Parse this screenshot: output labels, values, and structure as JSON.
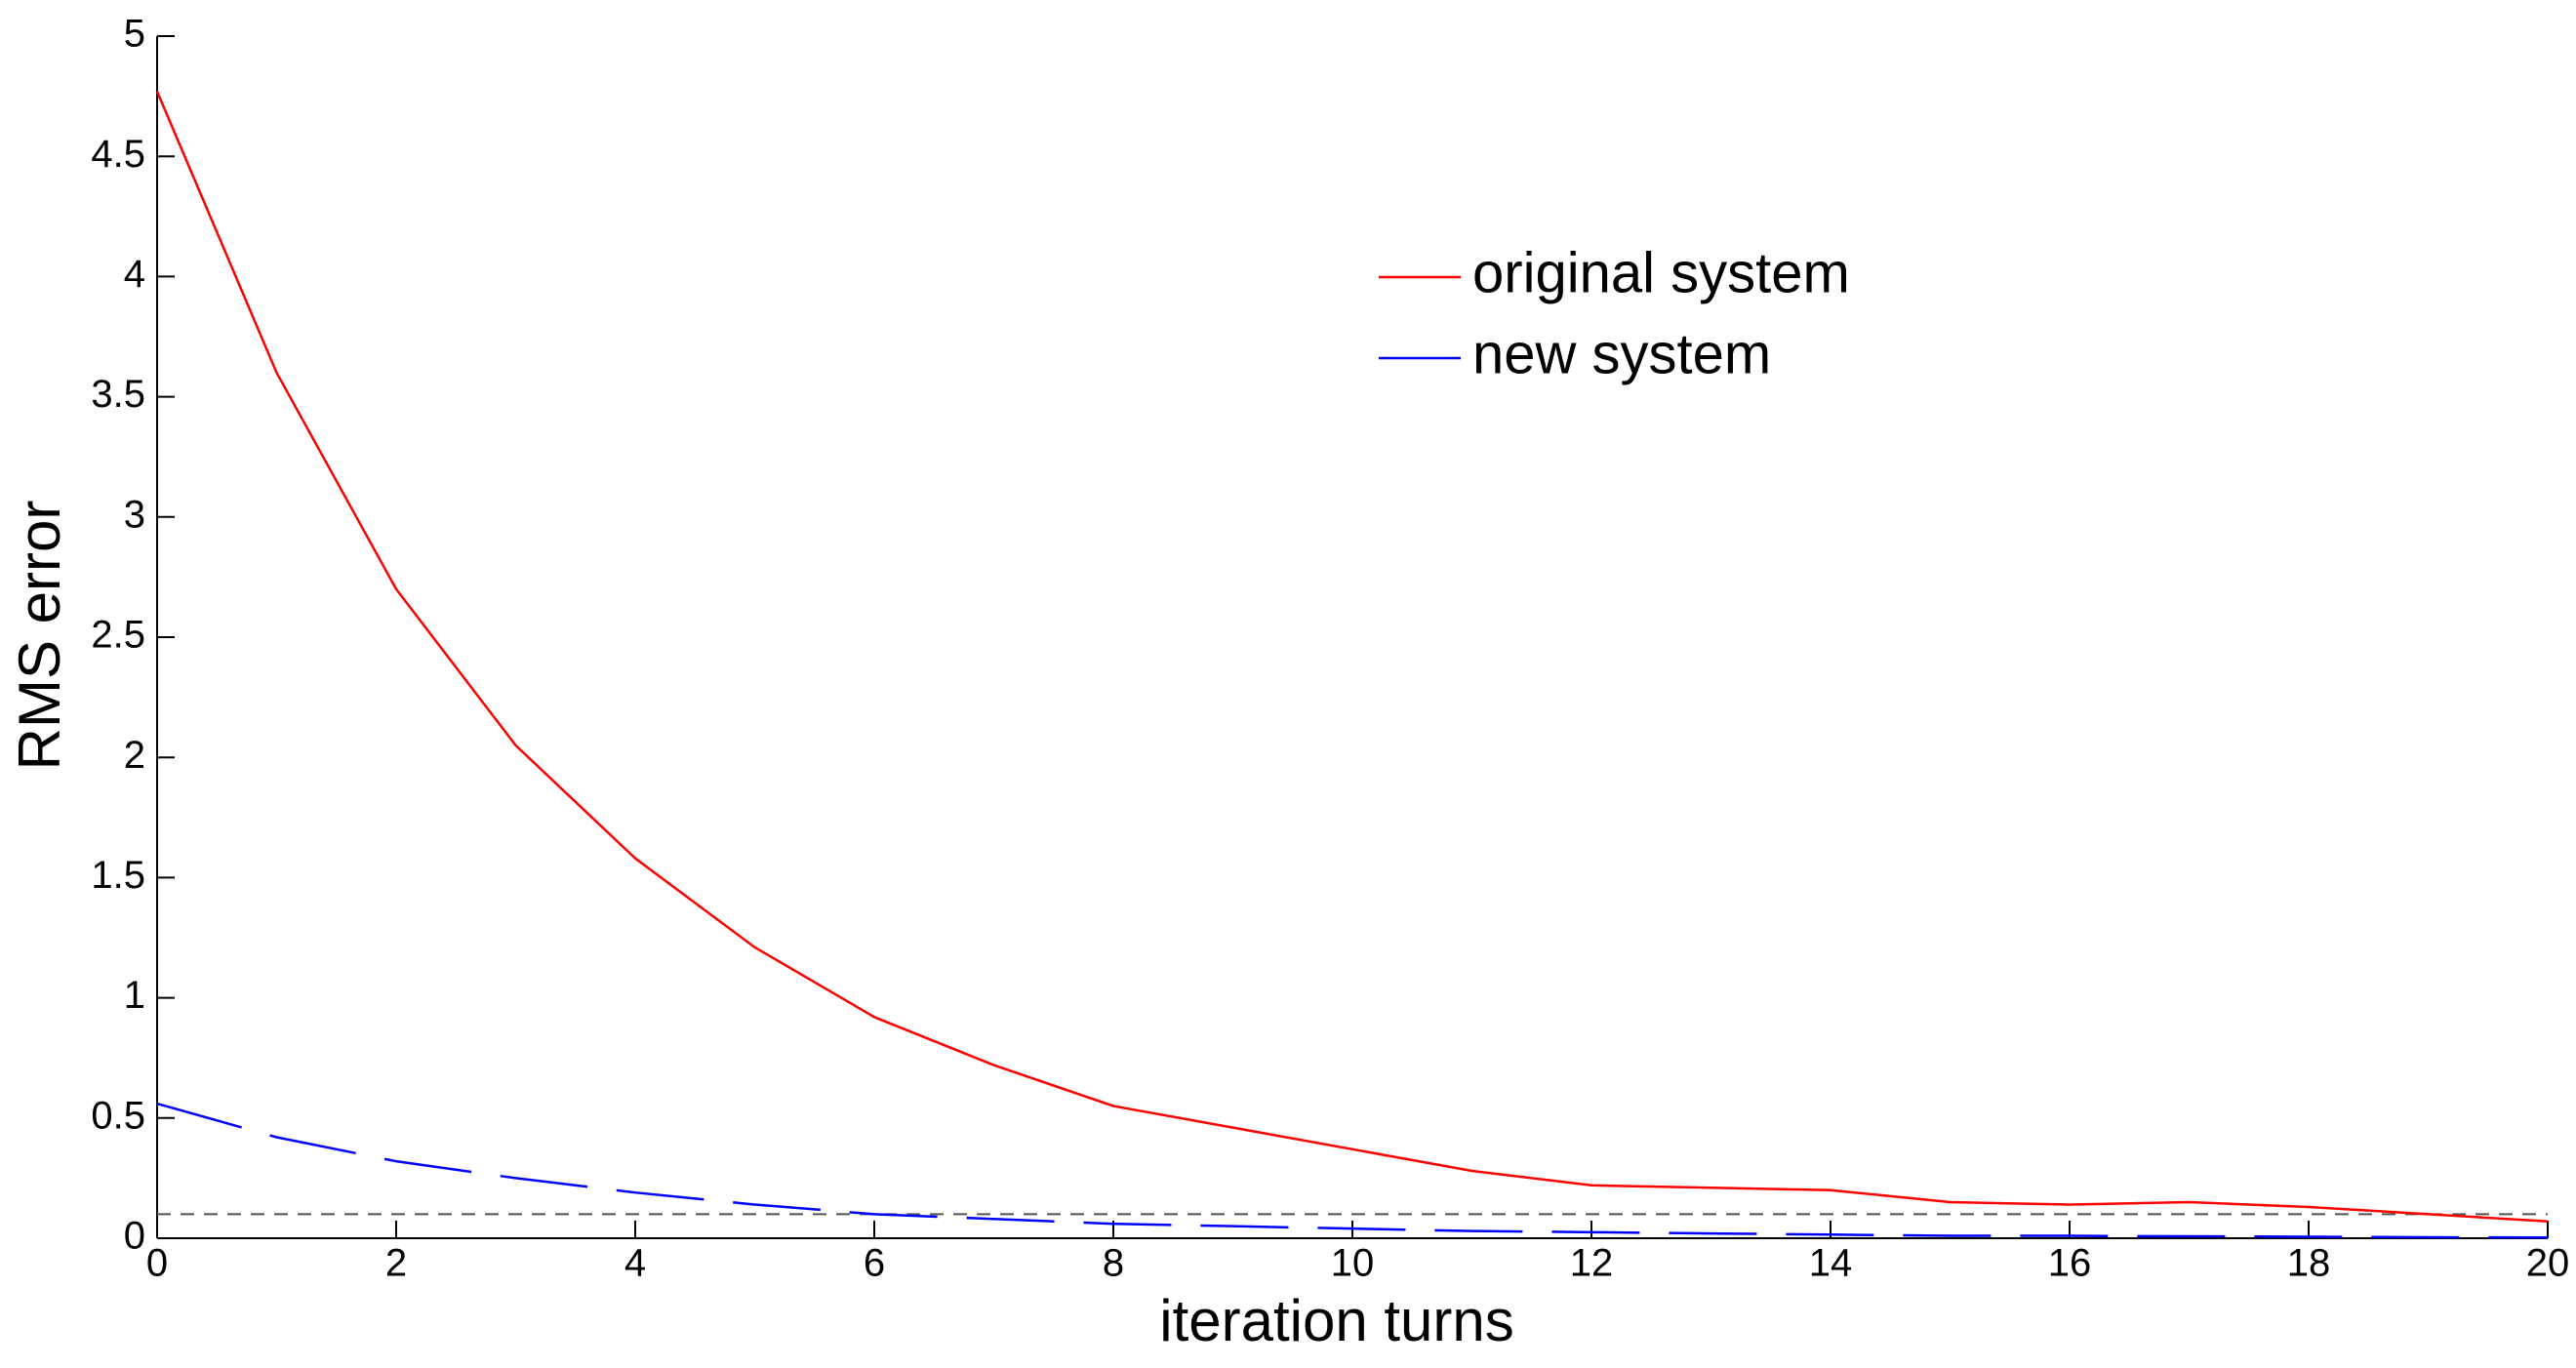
{
  "chart_data": {
    "type": "line",
    "x_label": "iteration turns",
    "y_label": "RMS error",
    "x": [
      0,
      1,
      2,
      3,
      4,
      5,
      6,
      7,
      8,
      9,
      10,
      11,
      12,
      13,
      14,
      15,
      16,
      17,
      18,
      19,
      20
    ],
    "series": [
      {
        "name": "original system",
        "color": "#ff0000",
        "line_style": "solid",
        "values": [
          4.77,
          3.6,
          2.7,
          2.05,
          1.58,
          1.21,
          0.92,
          0.72,
          0.55,
          0.46,
          0.37,
          0.28,
          0.22,
          0.21,
          0.2,
          0.15,
          0.14,
          0.15,
          0.13,
          0.1,
          0.07
        ]
      },
      {
        "name": "new system",
        "color": "#0000ff",
        "line_style": "dashed",
        "values": [
          0.56,
          0.42,
          0.32,
          0.25,
          0.19,
          0.14,
          0.1,
          0.08,
          0.06,
          0.05,
          0.04,
          0.03,
          0.025,
          0.02,
          0.015,
          0.01,
          0.01,
          0.008,
          0.006,
          0.004,
          0.003
        ]
      }
    ],
    "reference_line": 0.1,
    "xlim": [
      0,
      20
    ],
    "ylim": [
      0,
      5
    ],
    "xticks": [
      0,
      2,
      4,
      6,
      8,
      10,
      12,
      14,
      16,
      18,
      20
    ],
    "yticks": [
      0,
      0.5,
      1,
      1.5,
      2,
      2.5,
      3,
      3.5,
      4,
      4.5,
      5
    ],
    "grid": false,
    "legend": "upper-center"
  }
}
